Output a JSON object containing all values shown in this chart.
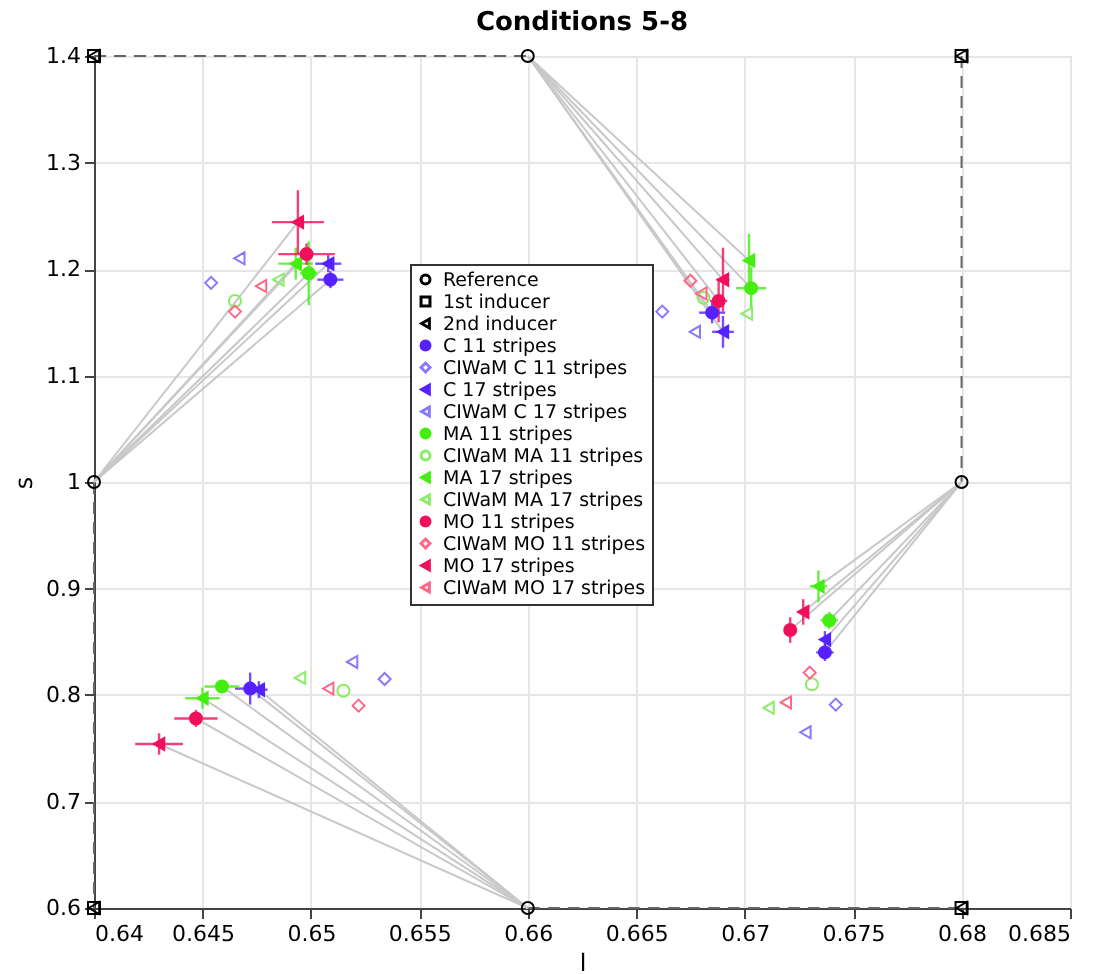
{
  "chart_data": {
    "type": "scatter",
    "title": "Conditions 5-8",
    "xlabel": "l",
    "ylabel": "s",
    "xlim": [
      0.64,
      0.685
    ],
    "ylim": [
      0.6,
      1.4
    ],
    "xticks": [
      0.64,
      0.645,
      0.65,
      0.655,
      0.66,
      0.665,
      0.67,
      0.675,
      0.68,
      0.685
    ],
    "yticks": [
      0.6,
      0.7,
      0.8,
      0.9,
      1,
      1.1,
      1.2,
      1.3,
      1.4
    ],
    "grid": true,
    "legend": "left",
    "series": [
      {
        "name": "Reference",
        "marker": "circle",
        "color": "#000000",
        "x": [
          0.64,
          0.66,
          0.68,
          0.66
        ],
        "values": [
          1.0,
          1.4,
          1.0,
          0.6
        ]
      },
      {
        "name": "1st inducer",
        "marker": "square",
        "color": "#000000",
        "x": [
          0.64,
          0.68,
          0.64,
          0.68
        ],
        "values": [
          1.4,
          1.4,
          0.6,
          0.6
        ]
      },
      {
        "name": "2nd inducer",
        "marker": "triangle",
        "color": "#000000",
        "x": [
          0.64,
          0.68,
          0.64,
          0.68
        ],
        "values": [
          1.4,
          1.4,
          0.6,
          0.6
        ]
      },
      {
        "name": "C 11 stripes",
        "marker": "circle",
        "color": "#5522ff",
        "x": [
          0.6509,
          0.6685,
          0.6737,
          0.6472
        ],
        "values": [
          1.19,
          1.159,
          0.84,
          0.806
        ],
        "errors": [
          0.008,
          0.01,
          0.008,
          0.015
        ],
        "xerrors": [
          0.0006,
          0.0006,
          0.0004,
          0.0007
        ]
      },
      {
        "name": "CIWaM C 11 stripes",
        "marker": "diamond",
        "color": "#8877ff",
        "x": [
          0.6454,
          0.6662,
          0.6742,
          0.6534
        ],
        "values": [
          1.187,
          1.16,
          0.791,
          0.815
        ]
      },
      {
        "name": "C 17 stripes",
        "marker": "triangle",
        "color": "#5522ff",
        "x": [
          0.6508,
          0.669,
          0.6737,
          0.6476
        ],
        "values": [
          1.205,
          1.141,
          0.852,
          0.805
        ],
        "errors": [
          0.008,
          0.015,
          0.008,
          0.008
        ],
        "xerrors": [
          0.0006,
          0.0005,
          0.0002,
          0.0004
        ]
      },
      {
        "name": "CIWaM C 17 stripes",
        "marker": "triangle",
        "color": "#8877ff",
        "x": [
          0.6467,
          0.6677,
          0.6728,
          0.6519
        ],
        "values": [
          1.21,
          1.141,
          0.765,
          0.831
        ]
      },
      {
        "name": "MA 11 stripes",
        "marker": "circle",
        "color": "#44ee11",
        "x": [
          0.6499,
          0.6703,
          0.6739,
          0.6459
        ],
        "values": [
          1.196,
          1.182,
          0.87,
          0.808
        ],
        "errors": [
          0.03,
          0.02,
          0.008,
          0.006
        ],
        "xerrors": [
          0.0004,
          0.0007,
          0.0004,
          0.0008
        ]
      },
      {
        "name": "CIWaM MA 11 stripes",
        "marker": "circle",
        "color": "#88ee66",
        "x": [
          0.6465,
          0.6681,
          0.6731,
          0.6515
        ],
        "values": [
          1.17,
          1.173,
          0.81,
          0.804
        ]
      },
      {
        "name": "MA 17 stripes",
        "marker": "triangle",
        "color": "#44ee11",
        "x": [
          0.6493,
          0.6702,
          0.6734,
          0.645
        ],
        "values": [
          1.205,
          1.208,
          0.902,
          0.797
        ],
        "errors": [
          0.015,
          0.025,
          0.015,
          0.01
        ],
        "xerrors": [
          0.0008,
          0.0002,
          0.0004,
          0.0008
        ]
      },
      {
        "name": "CIWaM MA 17 stripes",
        "marker": "triangle",
        "color": "#88ee66",
        "x": [
          0.6485,
          0.6701,
          0.6711,
          0.6495
        ],
        "values": [
          1.19,
          1.158,
          0.788,
          0.816
        ]
      },
      {
        "name": "MO 11 stripes",
        "marker": "circle",
        "color": "#f0105a",
        "x": [
          0.6498,
          0.6688,
          0.6721,
          0.6447
        ],
        "values": [
          1.214,
          1.17,
          0.861,
          0.778
        ],
        "errors": [
          0.01,
          0.02,
          0.012,
          0.008
        ],
        "xerrors": [
          0.0013,
          0.0004,
          0.0002,
          0.001
        ]
      },
      {
        "name": "CIWaM MO 11 stripes",
        "marker": "diamond",
        "color": "#ff6688",
        "x": [
          0.6465,
          0.6675,
          0.673,
          0.6522
        ],
        "values": [
          1.16,
          1.189,
          0.821,
          0.79
        ]
      },
      {
        "name": "MO 17 stripes",
        "marker": "triangle",
        "color": "#f0105a",
        "x": [
          0.6494,
          0.669,
          0.6727,
          0.643
        ],
        "values": [
          1.244,
          1.19,
          0.878,
          0.754
        ],
        "errors": [
          0.03,
          0.03,
          0.012,
          0.01
        ],
        "xerrors": [
          0.0012,
          0.0003,
          0.0002,
          0.0011
        ]
      },
      {
        "name": "CIWaM MO 17 stripes",
        "marker": "triangle",
        "color": "#ff6688",
        "x": [
          0.6477,
          0.668,
          0.6719,
          0.6508
        ],
        "values": [
          1.184,
          1.177,
          0.793,
          0.806
        ]
      },
      {
        "type": "line",
        "line_style": "dashed",
        "color": "#666666",
        "x": [
          0.64,
          0.66
        ],
        "values": [
          1.4,
          1.4
        ]
      },
      {
        "type": "line",
        "line_style": "dashed",
        "color": "#666666",
        "x": [
          0.68,
          0.68
        ],
        "values": [
          1.4,
          1.0
        ]
      },
      {
        "type": "line",
        "line_style": "dashed",
        "color": "#666666",
        "x": [
          0.66,
          0.68
        ],
        "values": [
          0.6,
          0.6
        ]
      },
      {
        "type": "line",
        "line_style": "dashed",
        "color": "#666666",
        "x": [
          0.64,
          0.64
        ],
        "values": [
          1.0,
          0.6
        ]
      },
      {
        "type": "line",
        "line_style": "solid",
        "color": "#c8c8c8",
        "x": [
          0.64,
          0.6509
        ],
        "values": [
          1,
          1.19
        ]
      },
      {
        "type": "line",
        "line_style": "solid",
        "color": "#c8c8c8",
        "x": [
          0.64,
          0.6508
        ],
        "values": [
          1,
          1.205
        ]
      },
      {
        "type": "line",
        "line_style": "solid",
        "color": "#c8c8c8",
        "x": [
          0.64,
          0.6499
        ],
        "values": [
          1,
          1.196
        ]
      },
      {
        "type": "line",
        "line_style": "solid",
        "color": "#c8c8c8",
        "x": [
          0.64,
          0.6493
        ],
        "values": [
          1,
          1.205
        ]
      },
      {
        "type": "line",
        "line_style": "solid",
        "color": "#c8c8c8",
        "x": [
          0.64,
          0.6498
        ],
        "values": [
          1,
          1.214
        ]
      },
      {
        "type": "line",
        "line_style": "solid",
        "color": "#c8c8c8",
        "x": [
          0.64,
          0.6494
        ],
        "values": [
          1,
          1.244
        ]
      },
      {
        "type": "line",
        "line_style": "solid",
        "color": "#c8c8c8",
        "x": [
          0.66,
          0.6685
        ],
        "values": [
          1.4,
          1.159
        ]
      },
      {
        "type": "line",
        "line_style": "solid",
        "color": "#c8c8c8",
        "x": [
          0.66,
          0.669
        ],
        "values": [
          1.4,
          1.141
        ]
      },
      {
        "type": "line",
        "line_style": "solid",
        "color": "#c8c8c8",
        "x": [
          0.66,
          0.6703
        ],
        "values": [
          1.4,
          1.182
        ]
      },
      {
        "type": "line",
        "line_style": "solid",
        "color": "#c8c8c8",
        "x": [
          0.66,
          0.6702
        ],
        "values": [
          1.4,
          1.208
        ]
      },
      {
        "type": "line",
        "line_style": "solid",
        "color": "#c8c8c8",
        "x": [
          0.66,
          0.6688
        ],
        "values": [
          1.4,
          1.17
        ]
      },
      {
        "type": "line",
        "line_style": "solid",
        "color": "#c8c8c8",
        "x": [
          0.66,
          0.669
        ],
        "values": [
          1.4,
          1.19
        ]
      },
      {
        "type": "line",
        "line_style": "solid",
        "color": "#c8c8c8",
        "x": [
          0.68,
          0.6737
        ],
        "values": [
          1,
          0.84
        ]
      },
      {
        "type": "line",
        "line_style": "solid",
        "color": "#c8c8c8",
        "x": [
          0.68,
          0.6737
        ],
        "values": [
          1,
          0.852
        ]
      },
      {
        "type": "line",
        "line_style": "solid",
        "color": "#c8c8c8",
        "x": [
          0.68,
          0.6739
        ],
        "values": [
          1,
          0.87
        ]
      },
      {
        "type": "line",
        "line_style": "solid",
        "color": "#c8c8c8",
        "x": [
          0.68,
          0.6734
        ],
        "values": [
          1,
          0.902
        ]
      },
      {
        "type": "line",
        "line_style": "solid",
        "color": "#c8c8c8",
        "x": [
          0.68,
          0.6721
        ],
        "values": [
          1,
          0.861
        ]
      },
      {
        "type": "line",
        "line_style": "solid",
        "color": "#c8c8c8",
        "x": [
          0.68,
          0.6727
        ],
        "values": [
          1,
          0.878
        ]
      },
      {
        "type": "line",
        "line_style": "solid",
        "color": "#c8c8c8",
        "x": [
          0.66,
          0.6472
        ],
        "values": [
          0.6,
          0.806
        ]
      },
      {
        "type": "line",
        "line_style": "solid",
        "color": "#c8c8c8",
        "x": [
          0.66,
          0.6476
        ],
        "values": [
          0.6,
          0.805
        ]
      },
      {
        "type": "line",
        "line_style": "solid",
        "color": "#c8c8c8",
        "x": [
          0.66,
          0.6459
        ],
        "values": [
          0.6,
          0.808
        ]
      },
      {
        "type": "line",
        "line_style": "solid",
        "color": "#c8c8c8",
        "x": [
          0.66,
          0.645
        ],
        "values": [
          0.6,
          0.797
        ]
      },
      {
        "type": "line",
        "line_style": "solid",
        "color": "#c8c8c8",
        "x": [
          0.66,
          0.6447
        ],
        "values": [
          0.6,
          0.778
        ]
      },
      {
        "type": "line",
        "line_style": "solid",
        "color": "#c8c8c8",
        "x": [
          0.66,
          0.643
        ],
        "values": [
          0.6,
          0.754
        ]
      }
    ]
  }
}
